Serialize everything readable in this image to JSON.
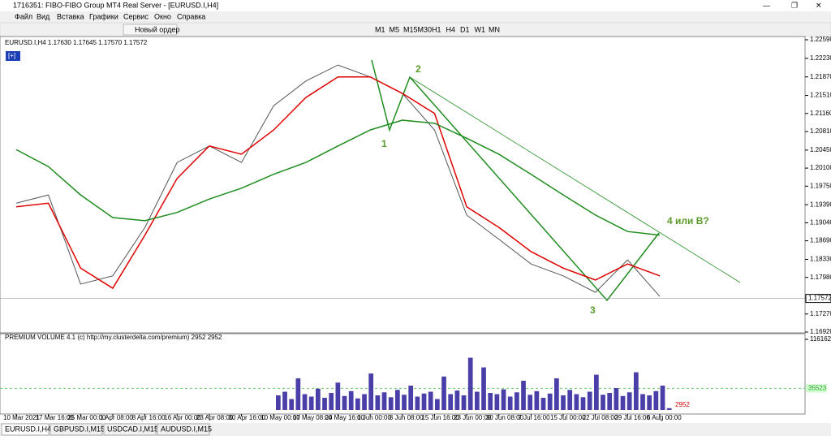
{
  "window": {
    "title": "1716351: FIBO-FIBO Group MT4 Real Server - [EURUSD.I,H4]"
  },
  "menu": [
    "Файл",
    "Вид",
    "Вставка",
    "Графики",
    "Сервис",
    "Окно",
    "Справка"
  ],
  "toolbar": {
    "new_order": "Новый ордер",
    "timeframes": [
      "M1",
      "M5",
      "M15",
      "M30",
      "H1",
      "H4",
      "D1",
      "W1",
      "MN"
    ]
  },
  "chart_button": "[+]",
  "chart_data": [
    {
      "type": "line",
      "title": "EURUSD.I,H4  1.17630 1.17645 1.17570 1.17572",
      "categories": [
        "10 Mar 2021",
        "17 Mar 16:00",
        "25 Mar 00:00",
        "1 Apr 08:00",
        "8 Apr 16:00",
        "16 Apr 00:00",
        "23 Apr 08:00",
        "30 Apr 16:00",
        "10 May 00:00",
        "17 May 08:00",
        "24 May 16:00",
        "1 Jun 00:00",
        "8 Jun 08:00",
        "15 Jun 16:00",
        "23 Jun 00:00",
        "30 Jun 08:00",
        "7 Jul 16:00",
        "15 Jul 00:00",
        "22 Jul 08:00",
        "29 Jul 16:00",
        "6 Aug 00:00"
      ],
      "series": [
        {
          "color": "#555555",
          "values": [
            1.1942,
            1.1958,
            1.1785,
            1.1801,
            1.1895,
            1.2021,
            1.2053,
            1.2021,
            1.2131,
            1.2179,
            1.221,
            1.2187,
            1.2155,
            1.2084,
            1.1919,
            1.1872,
            1.1824,
            1.1801,
            1.1769,
            1.1832,
            1.1761
          ]
        },
        {
          "color": "#e00000",
          "values": [
            1.1935,
            1.1942,
            1.1816,
            1.1777,
            1.188,
            1.199,
            1.2053,
            1.2037,
            1.2084,
            1.2147,
            1.2187,
            1.2187,
            1.2155,
            1.2116,
            1.1935,
            1.1895,
            1.1848,
            1.1816,
            1.1793,
            1.1824,
            1.1801
          ]
        },
        {
          "color": "#1e8c1e",
          "values": [
            1.2046,
            1.2013,
            1.1958,
            1.1914,
            1.1908,
            1.1924,
            1.195,
            1.1971,
            1.1998,
            1.2021,
            1.2053,
            1.2084,
            1.2103,
            1.2097,
            1.2068,
            1.2037,
            1.1998,
            1.1958,
            1.1919,
            1.1887,
            1.188
          ]
        }
      ],
      "last_price": 1.17572,
      "ylim": [
        1.1692,
        1.2259
      ],
      "yticks": [
        {
          "value": 1.2259,
          "label": "1.22590"
        },
        {
          "value": 1.2223,
          "label": "1.22230"
        },
        {
          "value": 1.2187,
          "label": "1.21870"
        },
        {
          "value": 1.2151,
          "label": "1.21510"
        },
        {
          "value": 1.2116,
          "label": "1.21160"
        },
        {
          "value": 1.2081,
          "label": "1.20810"
        },
        {
          "value": 1.2045,
          "label": "1.20450"
        },
        {
          "value": 1.201,
          "label": "1.20100"
        },
        {
          "value": 1.1975,
          "label": "1.19750"
        },
        {
          "value": 1.1939,
          "label": "1.19390"
        },
        {
          "value": 1.1904,
          "label": "1.19040"
        },
        {
          "value": 1.1869,
          "label": "1.18690"
        },
        {
          "value": 1.1833,
          "label": "1.18330"
        },
        {
          "value": 1.1798,
          "label": "1.17980"
        },
        {
          "value": 1.1727,
          "label": "1.17270"
        },
        {
          "value": 1.1692,
          "label": "1.16920"
        }
      ],
      "annotations": [
        "1",
        "2",
        "3",
        "4 или B?"
      ]
    },
    {
      "type": "bar",
      "title": "PREMIUM VOLUME 4.1 (c) http://my.clusterdelta.com/premium) 2952 2952",
      "color": "#4a3fa8",
      "values": [
        24000,
        30000,
        18000,
        52000,
        26000,
        22000,
        35000,
        20000,
        28000,
        45000,
        23000,
        31000,
        19000,
        26000,
        60000,
        24000,
        29000,
        21000,
        33000,
        25000,
        40000,
        22000,
        27000,
        30000,
        18000,
        55000,
        26000,
        32000,
        24000,
        86000,
        30000,
        70000,
        28000,
        26000,
        34000,
        22000,
        29000,
        48000,
        25000,
        31000,
        20000,
        27000,
        52000,
        24000,
        33000,
        26000,
        21000,
        30000,
        58000,
        25000,
        28000,
        36000,
        23000,
        29000,
        62000,
        26000,
        24000,
        31000,
        40000,
        2952
      ],
      "ylim": [
        0,
        116162
      ],
      "yticks": [
        116162
      ],
      "level": 35523
    }
  ],
  "tabs": [
    "EURUSD.I,H4",
    "GBPUSD.I,M15",
    "USDCAD.I,M15",
    "AUDUSD.I,M15"
  ]
}
